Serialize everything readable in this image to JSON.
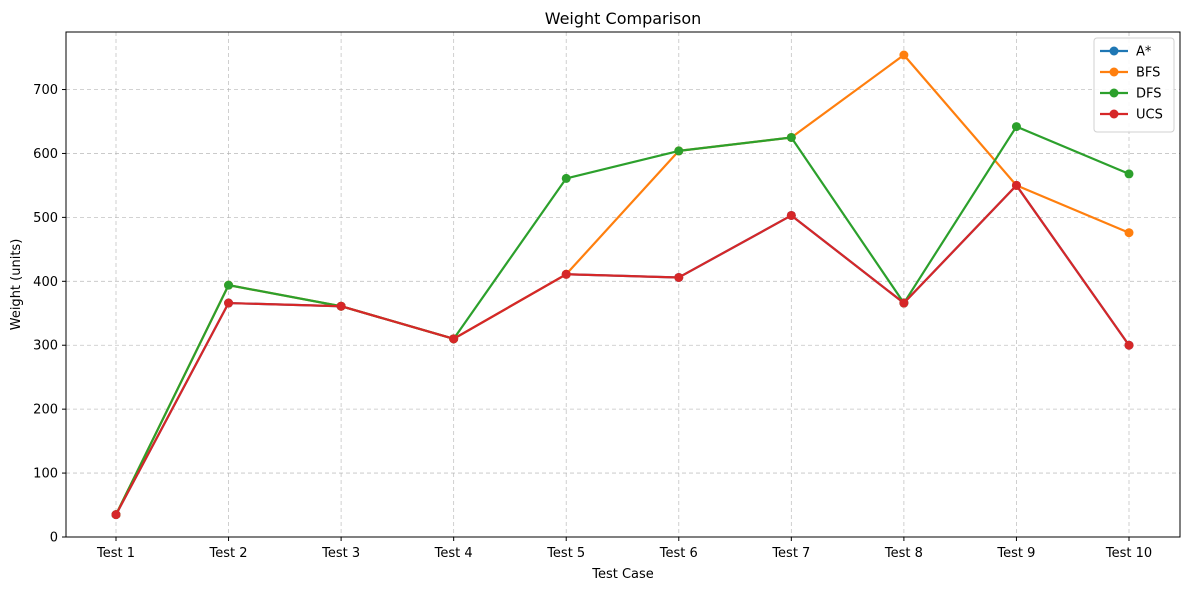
{
  "chart_data": {
    "type": "line",
    "title": "Weight Comparison",
    "xlabel": "Test Case",
    "ylabel": "Weight (units)",
    "categories": [
      "Test 1",
      "Test 2",
      "Test 3",
      "Test 4",
      "Test 5",
      "Test 6",
      "Test 7",
      "Test 8",
      "Test 9",
      "Test 10"
    ],
    "ylim": [
      0,
      790
    ],
    "yticks": [
      0,
      100,
      200,
      300,
      400,
      500,
      600,
      700
    ],
    "grid": true,
    "legend_position": "top-right",
    "marker": "circle",
    "series": [
      {
        "name": "A*",
        "color": "#1f77b4",
        "values": [
          35,
          366,
          361,
          310,
          411,
          406,
          503,
          366,
          550,
          300
        ]
      },
      {
        "name": "BFS",
        "color": "#ff7f0e",
        "values": [
          35,
          394,
          361,
          310,
          411,
          604,
          625,
          754,
          550,
          476
        ]
      },
      {
        "name": "DFS",
        "color": "#2ca02c",
        "values": [
          35,
          394,
          361,
          310,
          561,
          604,
          625,
          366,
          642,
          568
        ]
      },
      {
        "name": "UCS",
        "color": "#d62728",
        "values": [
          35,
          366,
          361,
          310,
          411,
          406,
          503,
          366,
          550,
          300
        ]
      }
    ]
  }
}
